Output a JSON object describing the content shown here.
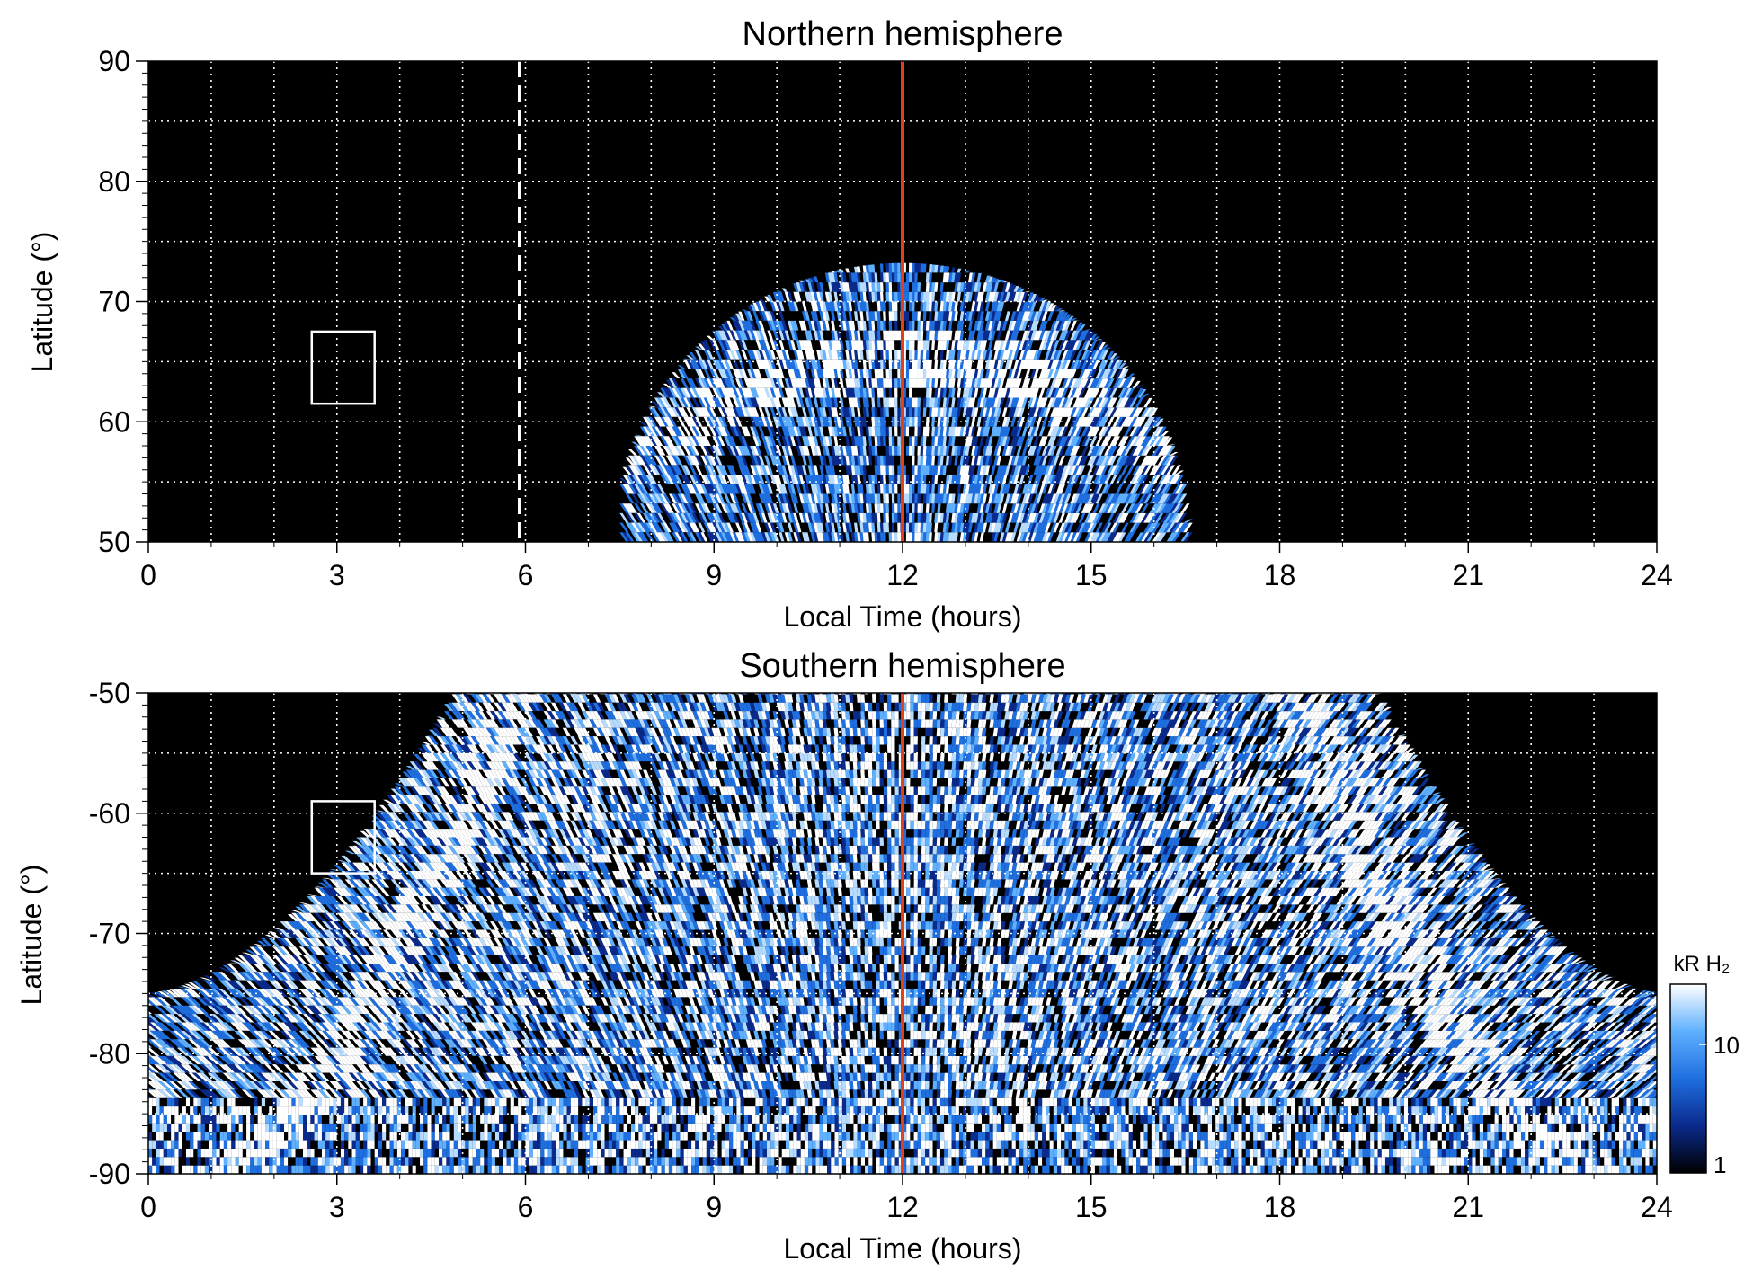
{
  "chart_data": [
    {
      "type": "heatmap",
      "title": "Northern hemisphere",
      "xlabel": "Local Time (hours)",
      "ylabel": "Latitude (°)",
      "xlim": [
        0,
        24
      ],
      "ylim": [
        50,
        90
      ],
      "xticks": [
        "0",
        "3",
        "6",
        "9",
        "12",
        "15",
        "18",
        "21",
        "24"
      ],
      "yticks": [
        "50",
        "60",
        "70",
        "80",
        "90"
      ],
      "grid": true,
      "background_color": "#000000",
      "emission_region": {
        "lt_start": 7.6,
        "lt_end": 16.6,
        "lat_min": 50,
        "lat_peak": 73.2,
        "peak_lt": 12.0
      },
      "aurora_band_lat": {
        "at_noon": 65,
        "at_edges": 55
      },
      "noon_line": {
        "lt": 12,
        "color": "#e0401a"
      },
      "dashed_line": {
        "lt": 5.9,
        "color": "#ffffff"
      },
      "box": {
        "lt_range": [
          2.6,
          3.6
        ],
        "lat_range": [
          61.5,
          67.5
        ]
      }
    },
    {
      "type": "heatmap",
      "title": "Southern hemisphere",
      "xlabel": "Local Time (hours)",
      "ylabel": "Latitude (°)",
      "xlim": [
        0,
        24
      ],
      "ylim": [
        -90,
        -50
      ],
      "xticks": [
        "0",
        "3",
        "6",
        "9",
        "12",
        "15",
        "18",
        "21",
        "24"
      ],
      "yticks": [
        "-90",
        "-80",
        "-70",
        "-60",
        "-50"
      ],
      "grid": true,
      "background_color": "#000000",
      "emission_region": {
        "edge_lat_at_0h": -75,
        "edge_lat_at_24h": -75,
        "top_lt_start": 4.9,
        "top_lt_end": 19.5
      },
      "aurora_band_lt": {
        "left_at_minus50": 5.8,
        "left_at_minus90": 1.0,
        "right_at_minus50": 18.2,
        "right_at_minus90": 23.0
      },
      "noon_line": {
        "lt": 12,
        "color": "#e0401a"
      },
      "box": {
        "lt_range": [
          2.6,
          3.6
        ],
        "lat_range": [
          -65,
          -59
        ]
      }
    }
  ],
  "colorbar": {
    "label": "kR H₂",
    "ticks": [
      "1",
      "10"
    ],
    "scale": "log",
    "range": [
      1,
      30
    ],
    "colors": [
      "#000000",
      "#0a2a8c",
      "#1f6fe0",
      "#5fb0ff",
      "#ffffff"
    ]
  }
}
